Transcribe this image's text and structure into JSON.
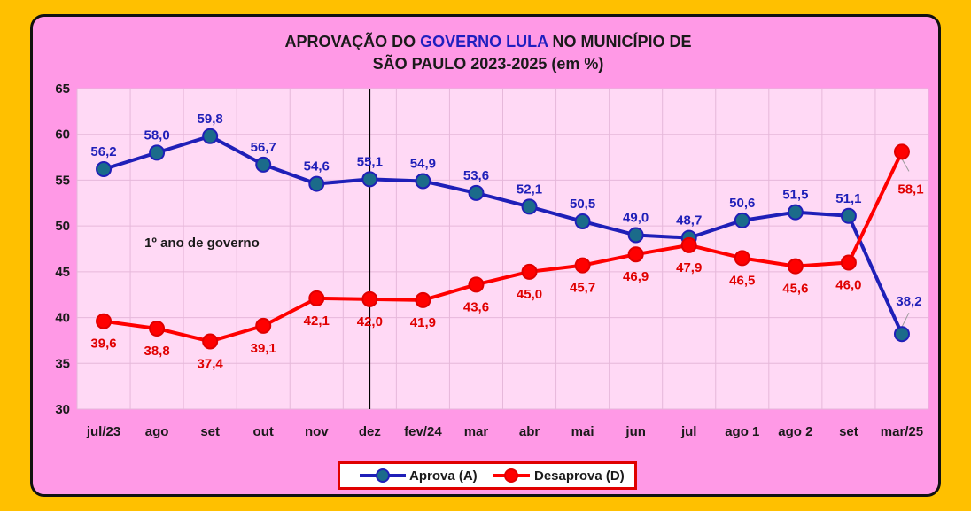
{
  "title": {
    "part1": "APROVAÇÃO DO ",
    "highlight": "GOVERNO LULA",
    "part2": " NO MUNICÍPIO DE",
    "line2": "SÃO PAULO 2023-2025 (em %)"
  },
  "colors": {
    "background": "#FFC000",
    "card": "#FF99E6",
    "plot": "#FFD9F5",
    "aprova": "#1F1FB8",
    "aprova_marker": "#1B6B8A",
    "desaprova": "#FF0000",
    "legend_border": "#E00000"
  },
  "chart_data": {
    "type": "line",
    "title": "APROVAÇÃO DO GOVERNO LULA NO MUNICÍPIO DE SÃO PAULO 2023-2025 (em %)",
    "categories": [
      "jul/23",
      "ago",
      "set",
      "out",
      "nov",
      "dez",
      "fev/24",
      "mar",
      "abr",
      "mai",
      "jun",
      "jul",
      "ago 1",
      "ago 2",
      "set",
      "mar/25"
    ],
    "series": [
      {
        "name": "Aprova (A)",
        "values": [
          56.2,
          58.0,
          59.8,
          56.7,
          54.6,
          55.1,
          54.9,
          53.6,
          52.1,
          50.5,
          49.0,
          48.7,
          50.6,
          51.5,
          51.1,
          38.2
        ],
        "labels": [
          "56,2",
          "58,0",
          "59,8",
          "56,7",
          "54,6",
          "55,1",
          "54,9",
          "53,6",
          "52,1",
          "50,5",
          "49,0",
          "48,7",
          "50,6",
          "51,5",
          "51,1",
          "38,2"
        ]
      },
      {
        "name": "Desaprova (D)",
        "values": [
          39.6,
          38.8,
          37.4,
          39.1,
          42.1,
          42.0,
          41.9,
          43.6,
          45.0,
          45.7,
          46.9,
          47.9,
          46.5,
          45.6,
          46.0,
          58.1
        ],
        "labels": [
          "39,6",
          "38,8",
          "37,4",
          "39,1",
          "42,1",
          "42,0",
          "41,9",
          "43,6",
          "45,0",
          "45,7",
          "46,9",
          "47,9",
          "46,5",
          "45,6",
          "46,0",
          "58,1"
        ]
      }
    ],
    "ylim": [
      30,
      65
    ],
    "yticks": [
      30,
      35,
      40,
      45,
      50,
      55,
      60,
      65
    ],
    "grid": true,
    "legend_position": "bottom",
    "annotation": "1º ano de governo",
    "divider_after_category": "dez"
  },
  "legend": {
    "aprova": "Aprova (A)",
    "desaprova": "Desaprova (D)"
  }
}
